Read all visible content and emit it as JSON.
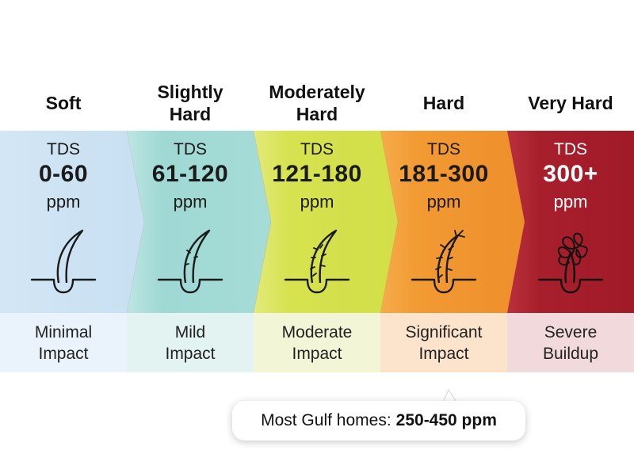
{
  "levels": [
    {
      "title": "Soft",
      "tds_label": "TDS",
      "range": "0-60",
      "unit": "ppm",
      "impact": "Minimal\nImpact",
      "icon": "smooth-hair-icon",
      "color": "#cfe3f3",
      "impact_bg": "#eaf3fb"
    },
    {
      "title": "Slightly\nHard",
      "tds_label": "TDS",
      "range": "61-120",
      "unit": "ppm",
      "impact": "Mild\nImpact",
      "icon": "slightly-rough-hair-icon",
      "color": "#a6dcd8",
      "impact_bg": "#e3f3f1"
    },
    {
      "title": "Moderately\nHard",
      "tds_label": "TDS",
      "range": "121-180",
      "unit": "ppm",
      "impact": "Moderate\nImpact",
      "icon": "rough-hair-icon",
      "color": "#d6e24f",
      "impact_bg": "#f2f6d6"
    },
    {
      "title": "Hard",
      "tds_label": "TDS",
      "range": "181-300",
      "unit": "ppm",
      "impact": "Significant\nImpact",
      "icon": "frayed-hair-icon",
      "color": "#f29a33",
      "impact_bg": "#fbe3cc"
    },
    {
      "title": "Very Hard",
      "tds_label": "TDS",
      "range": "300+",
      "unit": "ppm",
      "impact": "Severe\nBuildup",
      "icon": "tangled-hair-icon",
      "color": "#a81f2c",
      "impact_bg": "#f2d9db"
    }
  ],
  "callout": {
    "prefix": "Most Gulf homes:",
    "value": "250-450 ppm"
  }
}
